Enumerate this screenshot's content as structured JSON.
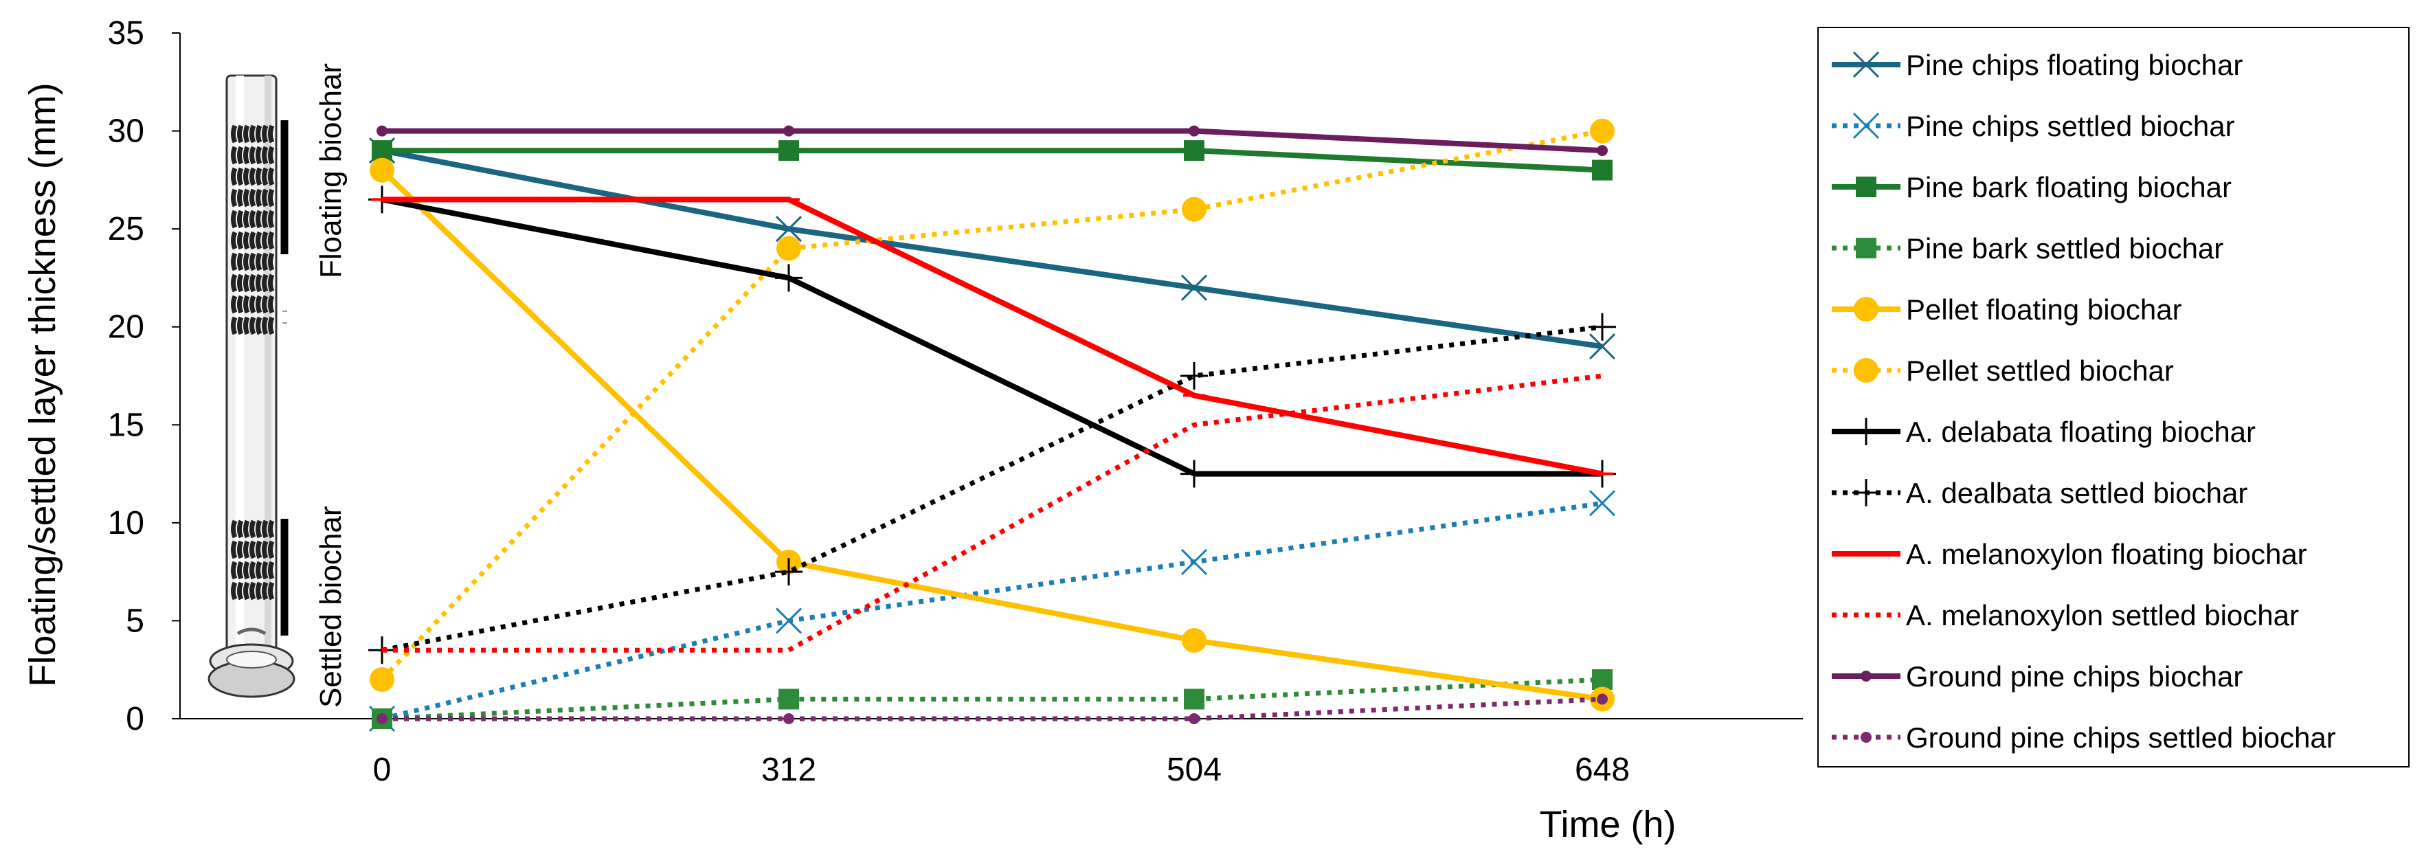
{
  "chart_data": {
    "type": "line",
    "title": "",
    "xlabel": "Time (h)",
    "ylabel": "Floating/settled layer thickness (mm)",
    "x": [
      0,
      312,
      504,
      648
    ],
    "x_tick_labels": [
      "0",
      "312",
      "504",
      "648"
    ],
    "ylim": [
      0,
      35
    ],
    "y_ticks": [
      0,
      5,
      10,
      15,
      20,
      25,
      30,
      35
    ],
    "grid": false,
    "legend_position": "right",
    "annotations": [
      "Floating biochar",
      "Settled biochar"
    ],
    "series": [
      {
        "name": "Pine chips floating  biochar",
        "values": [
          29,
          25,
          22,
          19
        ],
        "color": "#1a6582",
        "dash": "solid",
        "marker": "x"
      },
      {
        "name": "Pine chips settled biochar",
        "values": [
          0,
          5,
          8,
          11
        ],
        "color": "#1a7fb5",
        "dash": "dotted",
        "marker": "x"
      },
      {
        "name": "Pine bark floating  biochar",
        "values": [
          29,
          29,
          29,
          28
        ],
        "color": "#1e7a2d",
        "dash": "solid",
        "marker": "square"
      },
      {
        "name": "Pine bark settled biochar",
        "values": [
          0,
          1,
          1,
          2
        ],
        "color": "#2e8b3a",
        "dash": "dotted",
        "marker": "square"
      },
      {
        "name": "Pellet floating  biochar",
        "values": [
          28,
          8,
          4,
          1
        ],
        "color": "#ffc000",
        "dash": "solid",
        "marker": "circle"
      },
      {
        "name": "Pellet settled biochar",
        "values": [
          2,
          24,
          26,
          30
        ],
        "color": "#ffc000",
        "dash": "dotted",
        "marker": "circle"
      },
      {
        "name": "A. delabata floating  biochar",
        "values": [
          26.5,
          22.5,
          12.5,
          12.5
        ],
        "color": "#000000",
        "dash": "solid",
        "marker": "plus"
      },
      {
        "name": "A. dealbata settled biochar",
        "values": [
          3.5,
          7.5,
          17.5,
          20
        ],
        "color": "#000000",
        "dash": "dotted",
        "marker": "plus"
      },
      {
        "name": "A. melanoxylon floating  biochar",
        "values": [
          26.5,
          26.5,
          16.5,
          12.5
        ],
        "color": "#ff0000",
        "dash": "solid",
        "marker": "dash"
      },
      {
        "name": "A. melanoxylon settled biochar",
        "values": [
          3.5,
          3.5,
          15,
          17.5
        ],
        "color": "#ff0000",
        "dash": "dotted",
        "marker": "none"
      },
      {
        "name": "Ground pine chips biochar",
        "values": [
          30,
          30,
          30,
          29
        ],
        "color": "#6b1e5e",
        "dash": "solid",
        "marker": "dot"
      },
      {
        "name": "Ground pine chips settled  biochar",
        "values": [
          0,
          0,
          0,
          1
        ],
        "color": "#7a2a6e",
        "dash": "dotted",
        "marker": "dot"
      }
    ]
  }
}
